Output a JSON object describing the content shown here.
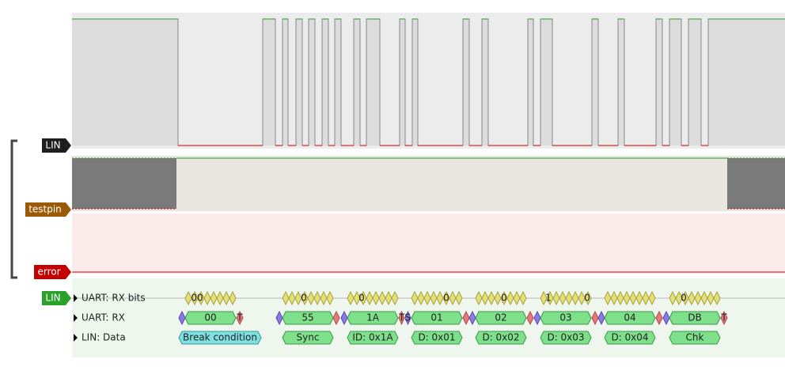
{
  "channels": [
    {
      "label": "LIN"
    },
    {
      "label": "testpin"
    },
    {
      "label": "error"
    }
  ],
  "decoder": {
    "badge": "LIN",
    "rows": [
      {
        "label": "UART: RX bits",
        "annotations": [
          "00",
          "0",
          "0",
          "0",
          "0",
          "1",
          "0",
          "0"
        ]
      },
      {
        "label": "UART: RX",
        "annotations": [
          "00",
          "T",
          "55",
          "1A",
          "TS",
          "01",
          "02",
          "03",
          "04",
          "DB",
          "T"
        ]
      },
      {
        "label": "LIN: Data",
        "annotations": [
          "Break condition",
          "Sync",
          "ID: 0x1A",
          "D: 0x01",
          "D: 0x02",
          "D: 0x03",
          "D: 0x04",
          "Chk"
        ]
      }
    ]
  }
}
